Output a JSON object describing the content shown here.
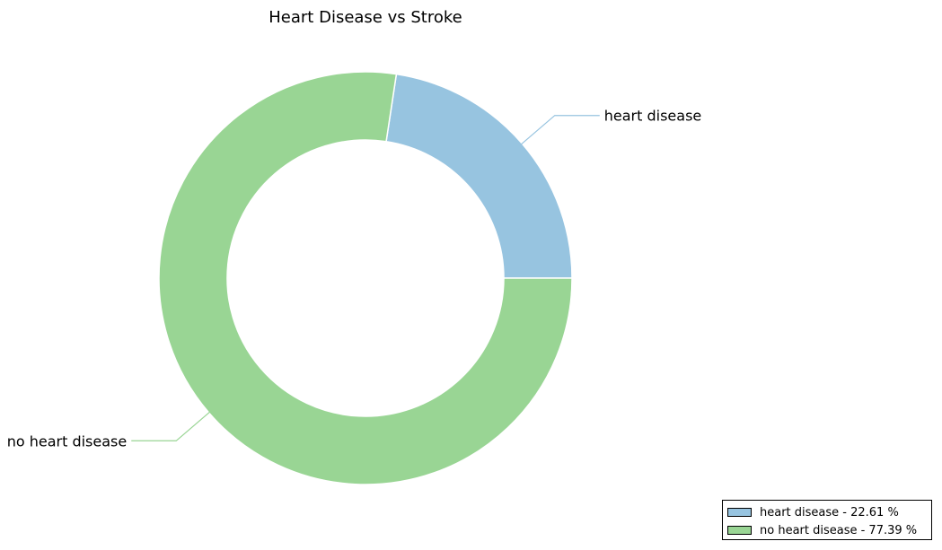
{
  "chart_data": {
    "type": "pie",
    "variant": "donut",
    "title": "Heart Disease vs Stroke",
    "categories": [
      "heart disease",
      "no heart disease"
    ],
    "values": [
      22.61,
      77.39
    ],
    "units": "%",
    "colors": [
      "#97c4e0",
      "#99d594"
    ],
    "start_angle_deg": 0,
    "direction": "counterclockwise",
    "slice_edge_color": "#ffffff",
    "legend": {
      "placement": "bottom-right",
      "entries": [
        "heart disease - 22.61 %",
        "no heart disease - 77.39 %"
      ]
    }
  }
}
